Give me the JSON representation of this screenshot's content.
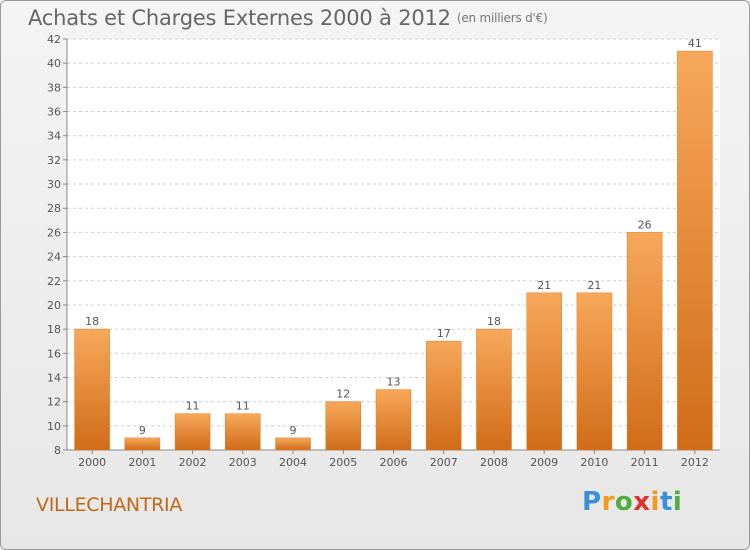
{
  "title": "Achats et Charges Externes 2000 à 2012",
  "units": "(en milliers d'€)",
  "commune": "VILLECHANTRIA",
  "logo": {
    "letters": [
      "P",
      "r",
      "o",
      "x",
      "i",
      "t",
      "i"
    ],
    "colors": [
      "#3a8fd6",
      "#f39a1c",
      "#4fae3b",
      "#e0312f",
      "#f39a1c",
      "#3a8fd6",
      "#4fae3b"
    ]
  },
  "colors": {
    "bar": "#ee8a30",
    "bar_light": "#f7a85a",
    "bar_dark": "#d06c18",
    "grid": "#cfcfcf"
  },
  "chart_data": {
    "type": "bar",
    "categories": [
      "2000",
      "2001",
      "2002",
      "2003",
      "2004",
      "2005",
      "2006",
      "2007",
      "2008",
      "2009",
      "2010",
      "2011",
      "2012"
    ],
    "values": [
      18,
      9,
      11,
      11,
      9,
      12,
      13,
      17,
      18,
      21,
      21,
      26,
      41
    ],
    "ylim": [
      8,
      42
    ],
    "yticks": [
      8,
      10,
      12,
      14,
      16,
      18,
      20,
      22,
      24,
      26,
      28,
      30,
      32,
      34,
      36,
      38,
      40,
      42
    ],
    "grid": true,
    "data_labels": true
  }
}
